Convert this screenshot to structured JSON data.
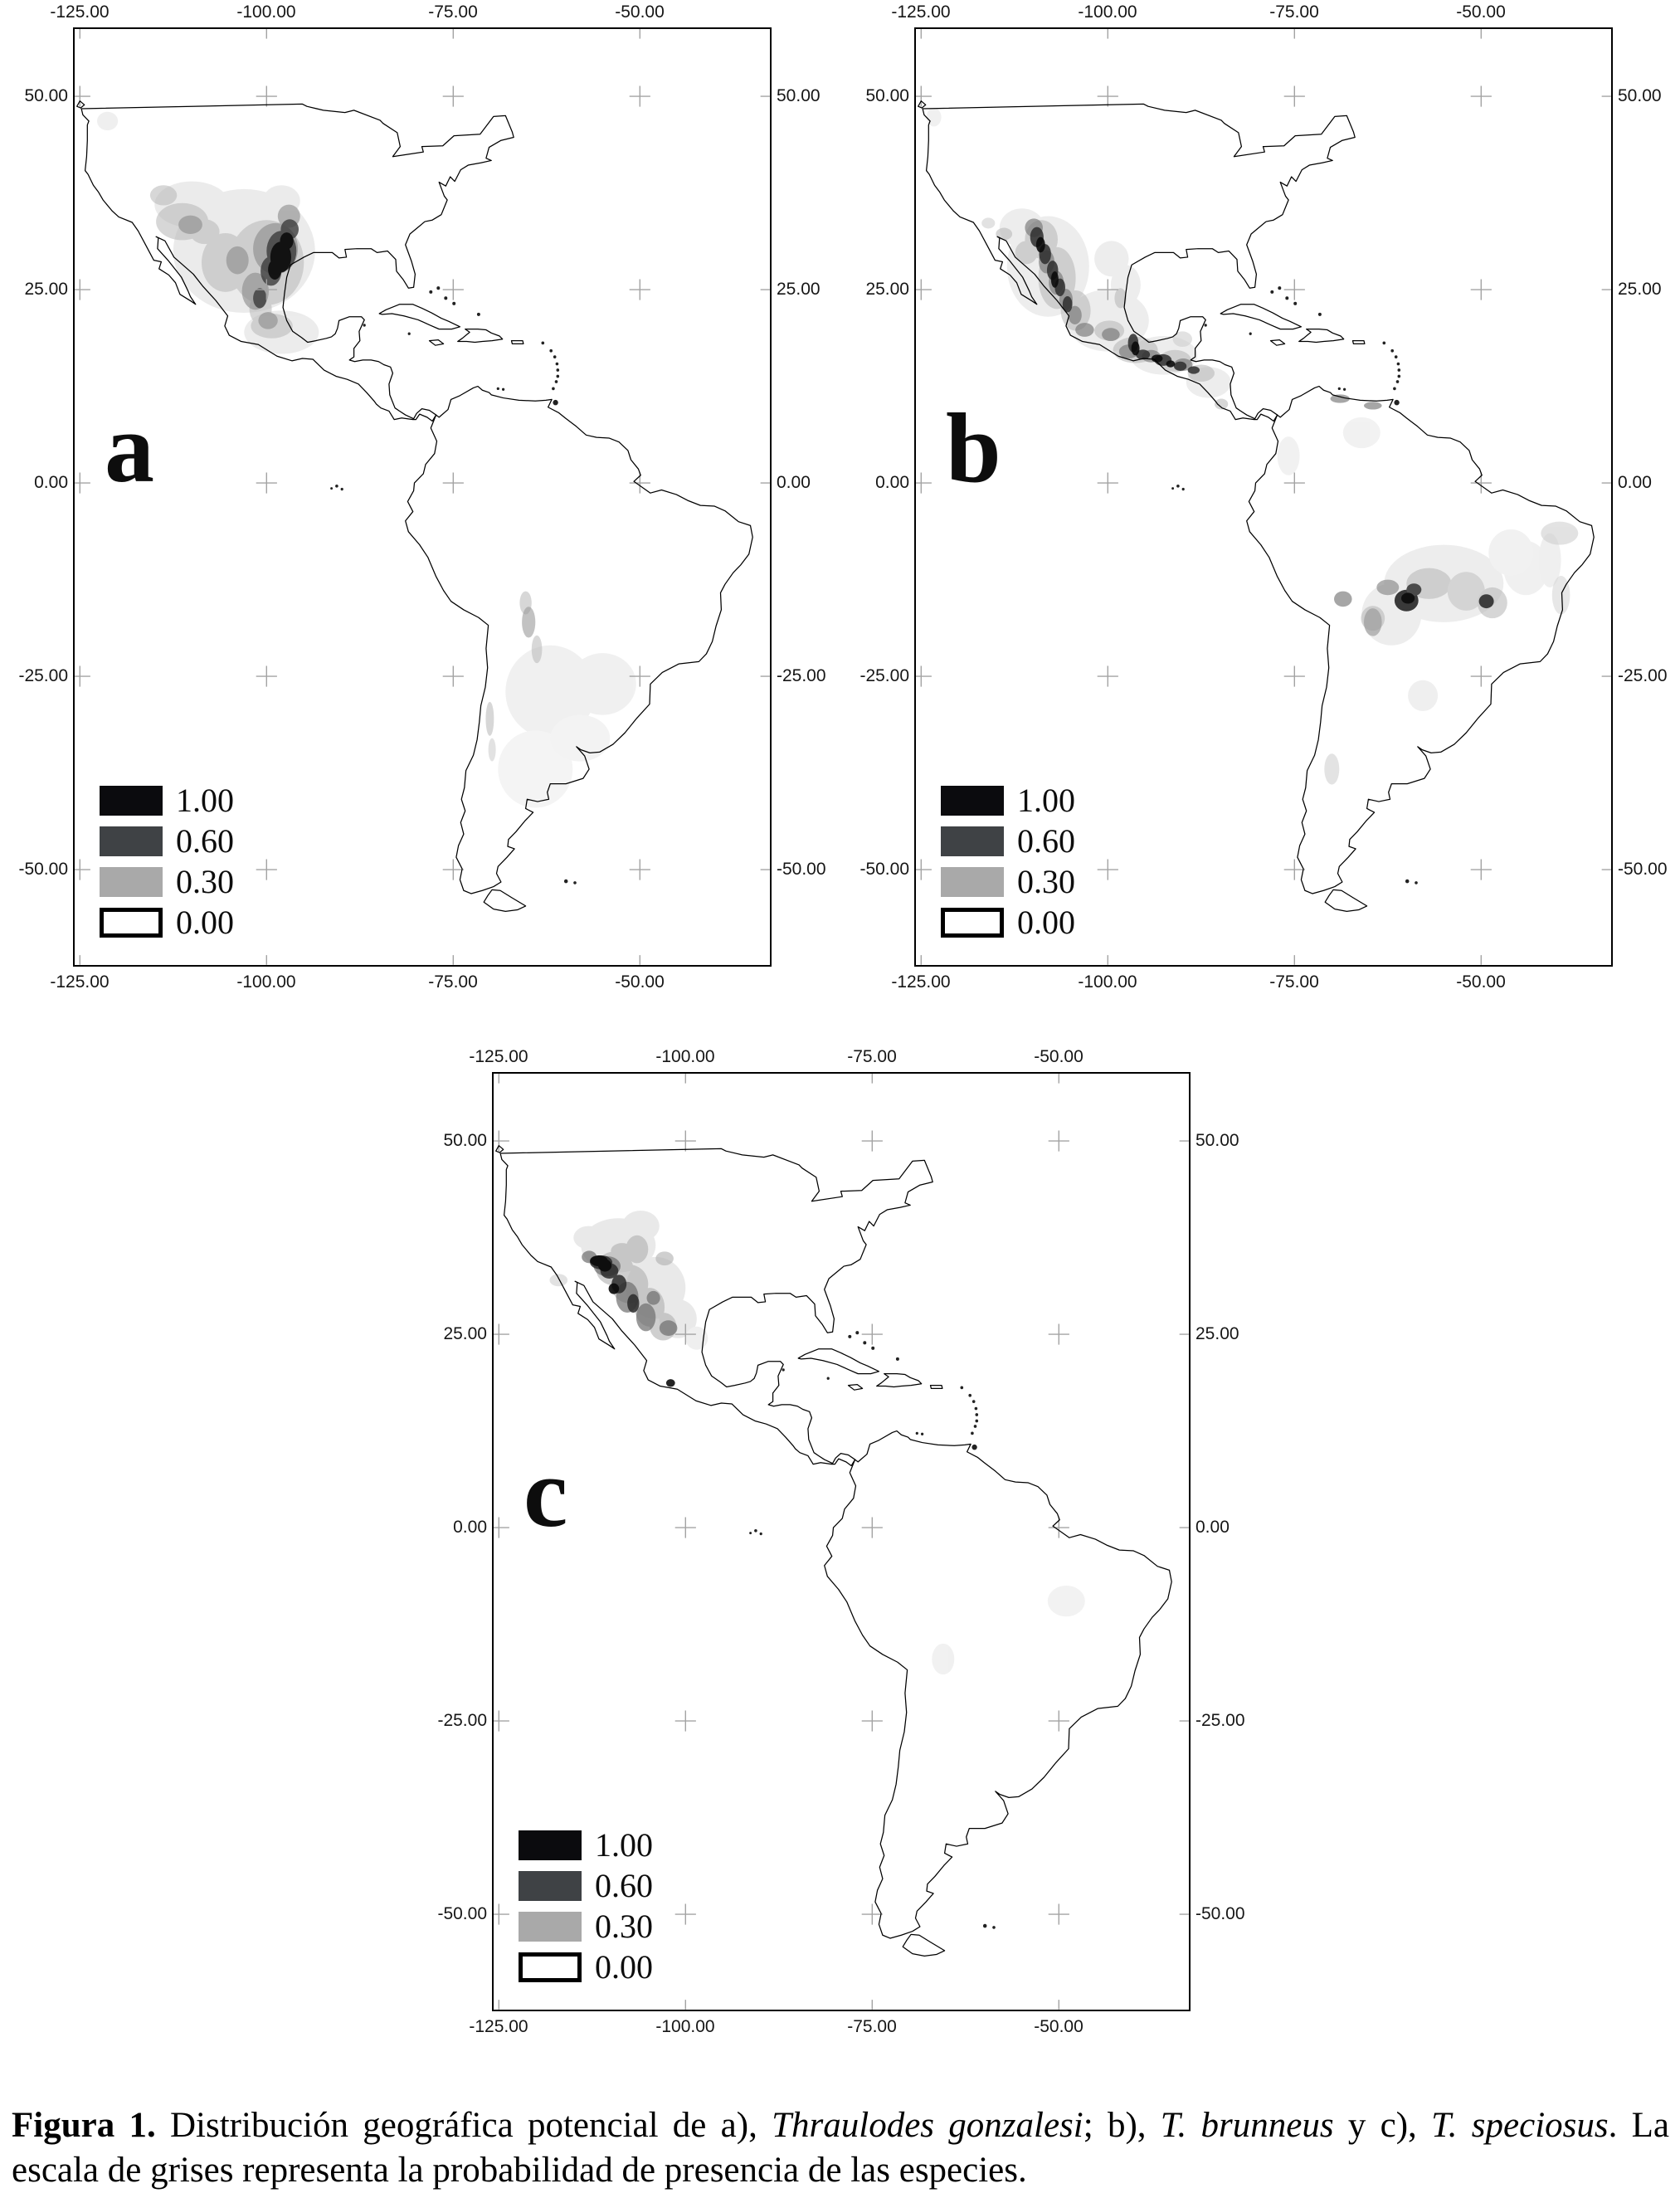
{
  "figure": {
    "caption_text": "Figura 1. Distribución geográfica potencial de a), Thraulodes gonzalesi; b), T. brunneus y c), T. speciosus. La escala de grises representa la probabilidad de presencia de las especies.",
    "caption_runs": [
      {
        "text": "Figura 1.",
        "b": true
      },
      {
        "text": " Distribución geográfica potencial de a), "
      },
      {
        "text": "Thraulodes gonzalesi",
        "i": true
      },
      {
        "text": "; b), "
      },
      {
        "text": "T. brunneus",
        "i": true
      },
      {
        "text": " y c), "
      },
      {
        "text": "T. speciosus",
        "i": true
      },
      {
        "text": ". La escala de grises representa la probabilidad de presencia de las especies."
      }
    ]
  },
  "panels": [
    {
      "letter": "a",
      "lon_labels": [
        "-125.00",
        "-100.00",
        "-75.00",
        "-50.00"
      ],
      "lat_labels": [
        "50.00",
        "25.00",
        "0.00",
        "-25.00",
        "-50.00"
      ],
      "legend": {
        "values": [
          "1.00",
          "0.60",
          "0.30",
          "0.00"
        ],
        "colors": [
          "#0b0b0e",
          "#3f4245",
          "#a9a9a9",
          "#ffffff"
        ]
      }
    },
    {
      "letter": "b",
      "lon_labels": [
        "-125.00",
        "-100.00",
        "-75.00",
        "-50.00"
      ],
      "lat_labels": [
        "50.00",
        "25.00",
        "0.00",
        "-25.00",
        "-50.00"
      ],
      "legend": {
        "values": [
          "1.00",
          "0.60",
          "0.30",
          "0.00"
        ],
        "colors": [
          "#0b0b0e",
          "#3f4245",
          "#a9a9a9",
          "#ffffff"
        ]
      }
    },
    {
      "letter": "c",
      "lon_labels": [
        "-125.00",
        "-100.00",
        "-75.00",
        "-50.00"
      ],
      "lat_labels": [
        "50.00",
        "25.00",
        "0.00",
        "-25.00",
        "-50.00"
      ],
      "legend": {
        "values": [
          "1.00",
          "0.60",
          "0.30",
          "0.00"
        ],
        "colors": [
          "#0b0b0e",
          "#3f4245",
          "#a9a9a9",
          "#ffffff"
        ]
      }
    }
  ]
}
